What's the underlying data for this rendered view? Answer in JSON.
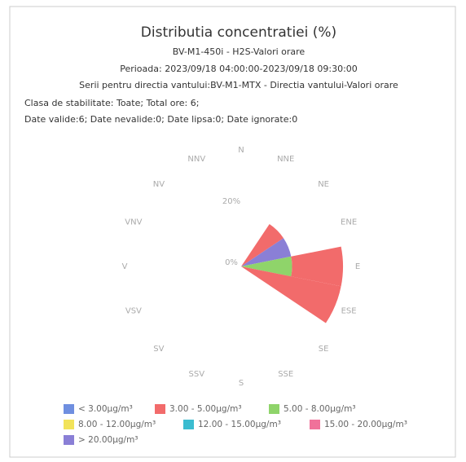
{
  "chart_data": {
    "type": "windrose",
    "title": "Distributia concentratiei (%)",
    "subtitle": [
      "BV-M1-450i - H2S-Valori orare",
      "Perioada: 2023/09/18 04:00:00-2023/09/18 09:30:00",
      "Serii pentru directia vantului:BV-M1-MTX - Directia vantului-Valori orare"
    ],
    "info": [
      "Clasa de stabilitate: Toate; Total ore: 6;",
      "Date valide:6; Date nevalide:0; Date lipsa:0; Date ignorate:0"
    ],
    "categories": [
      "N",
      "NNE",
      "NE",
      "ENE",
      "E",
      "ESE",
      "SE",
      "SSE",
      "S",
      "SSV",
      "SV",
      "VSV",
      "V",
      "VNV",
      "NV",
      "NNV"
    ],
    "series": [
      {
        "name": "< 3.00µg/m³",
        "color": "#6f8fe0",
        "values": [
          0,
          0,
          0,
          0,
          0,
          0,
          0,
          0,
          0,
          0,
          0,
          0,
          0,
          0,
          0,
          0
        ]
      },
      {
        "name": "3.00 - 5.00µg/m³",
        "color": "#f26b6b",
        "values": [
          0,
          0,
          16.67,
          0,
          16.67,
          33.33,
          0,
          0,
          0,
          0,
          0,
          0,
          0,
          0,
          0,
          0
        ]
      },
      {
        "name": "5.00 - 8.00µg/m³",
        "color": "#8fd46a",
        "values": [
          0,
          0,
          0,
          0,
          16.67,
          0,
          0,
          0,
          0,
          0,
          0,
          0,
          0,
          0,
          0,
          0
        ]
      },
      {
        "name": "8.00 - 12.00µg/m³",
        "color": "#f2e35a",
        "values": [
          0,
          0,
          0,
          0,
          0,
          0,
          0,
          0,
          0,
          0,
          0,
          0,
          0,
          0,
          0,
          0
        ]
      },
      {
        "name": "12.00 - 15.00µg/m³",
        "color": "#3bbcd0",
        "values": [
          0,
          0,
          0,
          0,
          0,
          0,
          0,
          0,
          0,
          0,
          0,
          0,
          0,
          0,
          0,
          0
        ]
      },
      {
        "name": "15.00 - 20.00µg/m³",
        "color": "#f0719a",
        "values": [
          0,
          0,
          0,
          0,
          0,
          0,
          0,
          0,
          0,
          0,
          0,
          0,
          0,
          0,
          0,
          0
        ]
      },
      {
        "name": "> 20.00µg/m³",
        "color": "#8a7fd6",
        "values": [
          0,
          0,
          0,
          16.67,
          0,
          0,
          0,
          0,
          0,
          0,
          0,
          0,
          0,
          0,
          0,
          0
        ]
      }
    ],
    "ylim": [
      0,
      33.33
    ],
    "yticks": [
      {
        "value": 0,
        "label": "0%"
      },
      {
        "value": 20,
        "label": "20%"
      }
    ]
  }
}
